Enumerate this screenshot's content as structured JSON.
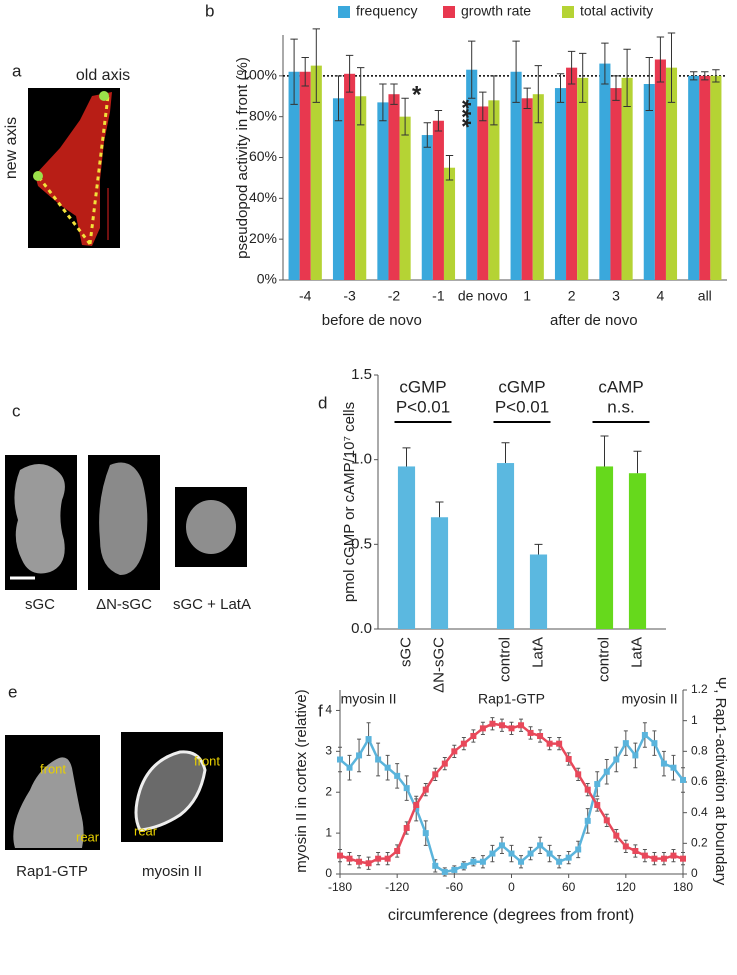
{
  "panel_letters": [
    "a",
    "b",
    "c",
    "d",
    "e",
    "f"
  ],
  "image_a": {
    "old_axis": "old axis",
    "new_axis": "new axis"
  },
  "image_c": {
    "labels": [
      "sGC",
      "ΔN-sGC",
      "sGC + LatA"
    ]
  },
  "image_e": {
    "labels": [
      "Rap1-GTP",
      "myosin II"
    ],
    "cell_labels": [
      [
        "front",
        "rear"
      ],
      [
        "front",
        "rear"
      ]
    ]
  },
  "chart_data": [
    {
      "type": "bar",
      "ylabel": "pseudopod activity in front (%)",
      "categories": [
        "-4",
        "-3",
        "-2",
        "-1",
        "de novo",
        "1",
        "2",
        "3",
        "4",
        "all"
      ],
      "series": [
        {
          "name": "frequency",
          "color": "#3aa8dc",
          "values": [
            102,
            89,
            87,
            71,
            103,
            102,
            94,
            106,
            96,
            100
          ],
          "errors": [
            16,
            11,
            9,
            6,
            14,
            15,
            7,
            10,
            13,
            2
          ]
        },
        {
          "name": "growth rate",
          "color": "#e8384f",
          "values": [
            102,
            101,
            91,
            78,
            85,
            89,
            104,
            94,
            108,
            100
          ],
          "errors": [
            7,
            9,
            5,
            5,
            7,
            5,
            8,
            6,
            11,
            2
          ]
        },
        {
          "name": "total activity",
          "color": "#b5d334",
          "values": [
            105,
            90,
            80,
            55,
            88,
            91,
            99,
            99,
            104,
            100
          ],
          "errors": [
            18,
            14,
            9,
            6,
            12,
            14,
            12,
            14,
            17,
            3
          ]
        }
      ],
      "error_bars": "both",
      "ylim": [
        0,
        120
      ],
      "yticks": [
        {
          "value": 0,
          "label": "0%"
        },
        {
          "value": 20,
          "label": "20%"
        },
        {
          "value": 40,
          "label": "40%"
        },
        {
          "value": 60,
          "label": "60%"
        },
        {
          "value": 80,
          "label": "80%"
        },
        {
          "value": 100,
          "label": "100%"
        }
      ],
      "reference_line": 100,
      "group_labels": [
        "before de novo",
        "after de novo"
      ],
      "annotations": [
        "*",
        "***"
      ],
      "legend": "top"
    },
    {
      "type": "bar",
      "ylabel": "pmol cGMP or cAMP/10⁷ cells",
      "categories": [
        "sGC",
        "ΔN-sGC",
        null,
        "control",
        "LatA",
        null,
        "control",
        "LatA"
      ],
      "values": [
        0.96,
        0.66,
        null,
        0.98,
        0.44,
        null,
        0.96,
        0.92
      ],
      "errors": [
        0.11,
        0.09,
        null,
        0.12,
        0.06,
        null,
        0.18,
        0.13
      ],
      "colors": [
        "#5bb8e0",
        "#5bb8e0",
        null,
        "#5bb8e0",
        "#5bb8e0",
        null,
        "#66d91c",
        "#66d91c"
      ],
      "error_bars": "upper",
      "ylim": [
        0,
        1.5
      ],
      "yticks": [
        {
          "value": 0,
          "label": "0.0"
        },
        {
          "value": 0.5,
          "label": "0.5"
        },
        {
          "value": 1,
          "label": "1.0"
        },
        {
          "value": 1.5,
          "label": "1.5"
        }
      ],
      "brackets": [
        [
          "cGMP",
          "P<0.01"
        ],
        [
          "cGMP",
          "P<0.01"
        ],
        [
          "cAMP",
          "n.s."
        ]
      ]
    },
    {
      "type": "line",
      "xlabel": "circumference (degrees from front)",
      "ylabel": "myosin II in cortex (relative)",
      "y2label": "Ψ, Rap1-activation at boundary",
      "annotations": [
        "myosin II",
        "Rap1-GTP",
        "myosin II"
      ],
      "x": [
        -180,
        -170,
        -160,
        -150,
        -140,
        -130,
        -120,
        -110,
        -100,
        -90,
        -80,
        -70,
        -60,
        -50,
        -40,
        -30,
        -20,
        -10,
        0,
        10,
        20,
        30,
        40,
        50,
        60,
        70,
        80,
        90,
        100,
        110,
        120,
        130,
        140,
        150,
        160,
        170,
        180
      ],
      "series": [
        {
          "color": "#5ab4dc",
          "values": [
            2.8,
            2.6,
            2.9,
            3.3,
            2.8,
            2.6,
            2.4,
            2.1,
            1.6,
            1.0,
            0.2,
            0.05,
            0.1,
            0.2,
            0.3,
            0.3,
            0.5,
            0.7,
            0.5,
            0.3,
            0.5,
            0.7,
            0.5,
            0.3,
            0.4,
            0.6,
            1.3,
            2.2,
            2.5,
            2.8,
            3.2,
            2.9,
            3.4,
            3.2,
            2.7,
            2.6,
            2.3
          ],
          "errors": [
            0.3,
            0.3,
            0.4,
            0.4,
            0.4,
            0.3,
            0.3,
            0.3,
            0.3,
            0.3,
            0.15,
            0.1,
            0.1,
            0.1,
            0.1,
            0.15,
            0.2,
            0.2,
            0.2,
            0.15,
            0.15,
            0.2,
            0.2,
            0.15,
            0.15,
            0.2,
            0.3,
            0.3,
            0.3,
            0.3,
            0.3,
            0.3,
            0.3,
            0.3,
            0.3,
            0.3,
            0.3
          ]
        },
        {
          "color": "#e8485a",
          "axis": "y2",
          "values": [
            0.12,
            0.1,
            0.08,
            0.07,
            0.1,
            0.1,
            0.15,
            0.3,
            0.45,
            0.55,
            0.65,
            0.72,
            0.8,
            0.85,
            0.9,
            0.95,
            0.98,
            0.97,
            0.95,
            0.97,
            0.92,
            0.9,
            0.85,
            0.85,
            0.75,
            0.65,
            0.55,
            0.45,
            0.35,
            0.25,
            0.18,
            0.15,
            0.12,
            0.1,
            0.1,
            0.12,
            0.1
          ],
          "errors": [
            0.04,
            0.04,
            0.04,
            0.04,
            0.04,
            0.04,
            0.04,
            0.04,
            0.04,
            0.04,
            0.04,
            0.04,
            0.04,
            0.04,
            0.04,
            0.04,
            0.04,
            0.04,
            0.04,
            0.04,
            0.04,
            0.04,
            0.04,
            0.04,
            0.04,
            0.04,
            0.04,
            0.04,
            0.04,
            0.04,
            0.04,
            0.04,
            0.04,
            0.04,
            0.04,
            0.04,
            0.04
          ]
        }
      ],
      "xlim": [
        -180,
        180
      ],
      "xticks": [
        -180,
        -120,
        -60,
        0,
        60,
        120,
        180
      ],
      "ylim": [
        0,
        4.5
      ],
      "yticks": [
        0,
        1,
        2,
        3,
        4
      ],
      "y2lim": [
        0,
        1.2
      ],
      "y2ticks": [
        0,
        0.2,
        0.4,
        0.6,
        0.8,
        1,
        1.2
      ]
    }
  ]
}
